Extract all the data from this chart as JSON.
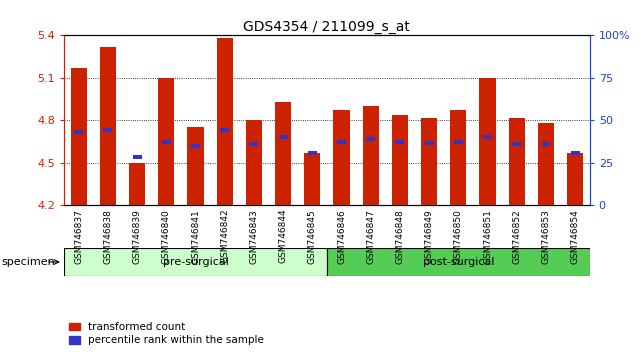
{
  "title": "GDS4354 / 211099_s_at",
  "samples": [
    "GSM746837",
    "GSM746838",
    "GSM746839",
    "GSM746840",
    "GSM746841",
    "GSM746842",
    "GSM746843",
    "GSM746844",
    "GSM746845",
    "GSM746846",
    "GSM746847",
    "GSM746848",
    "GSM746849",
    "GSM746850",
    "GSM746851",
    "GSM746852",
    "GSM746853",
    "GSM746854"
  ],
  "bar_values": [
    5.17,
    5.32,
    4.5,
    5.1,
    4.75,
    5.38,
    4.8,
    4.93,
    4.57,
    4.87,
    4.9,
    4.84,
    4.82,
    4.87,
    5.1,
    4.82,
    4.78,
    4.57
  ],
  "blue_values": [
    4.72,
    4.73,
    4.54,
    4.65,
    4.62,
    4.73,
    4.63,
    4.68,
    4.57,
    4.65,
    4.67,
    4.65,
    4.64,
    4.65,
    4.68,
    4.63,
    4.63,
    4.57
  ],
  "ymin": 4.2,
  "ymax": 5.4,
  "yticks": [
    4.2,
    4.5,
    4.8,
    5.1,
    5.4
  ],
  "ytick_labels": [
    "4.2",
    "4.5",
    "4.8",
    "5.1",
    "5.4"
  ],
  "y2ticks": [
    0,
    25,
    50,
    75,
    100
  ],
  "y2tick_labels": [
    "0",
    "25",
    "50",
    "75",
    "100%"
  ],
  "bar_color": "#cc2200",
  "blue_color": "#3333cc",
  "pre_n": 9,
  "post_n": 9,
  "pre_color": "#ccffcc",
  "post_color": "#55cc55",
  "specimen_label": "specimen",
  "pre_label": "pre-surgical",
  "post_label": "post-surgical",
  "legend_transformed": "transformed count",
  "legend_percentile": "percentile rank within the sample",
  "fig_width": 6.41,
  "fig_height": 3.54,
  "axis_label_color_left": "#cc2200",
  "axis_label_color_right": "#2244cc",
  "bg_color": "#ffffff"
}
